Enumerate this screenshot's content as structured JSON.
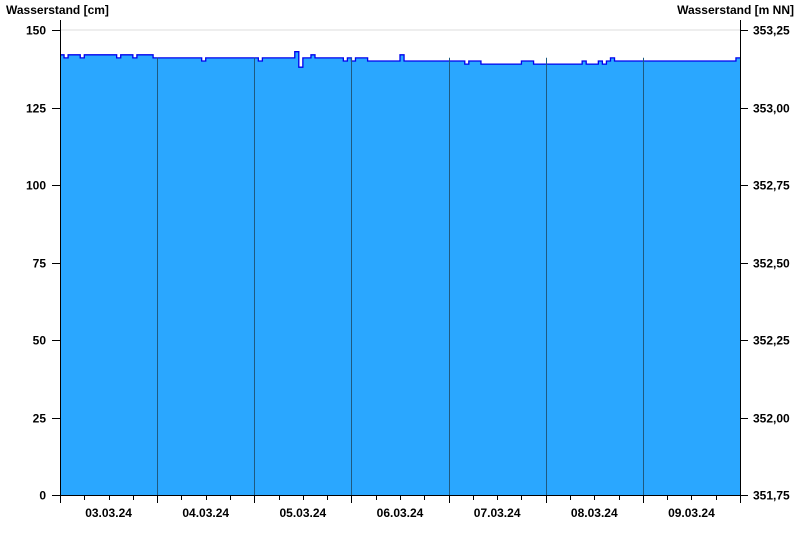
{
  "chart_data": {
    "type": "area",
    "ylabel_left": "Wasserstand [cm]",
    "ylabel_right": "Wasserstand [m NN]",
    "ylim": [
      0,
      150
    ],
    "yticks": [
      0,
      25,
      50,
      75,
      100,
      125,
      150
    ],
    "ylim_right": [
      351.75,
      353.25
    ],
    "yticks_right": [
      "351,75",
      "352,00",
      "352,25",
      "352,50",
      "352,75",
      "353,00",
      "353,25"
    ],
    "xlim": [
      "03.03.24 00:00",
      "10.03.24 00:00"
    ],
    "xticks": [
      "03.03.24",
      "04.03.24",
      "05.03.24",
      "06.03.24",
      "07.03.24",
      "08.03.24",
      "09.03.24"
    ],
    "grid": true,
    "fill_color": "#2aa7ff",
    "line_color": "#0000ee",
    "series": [
      {
        "points": [
          [
            "03.03.24 00:00",
            142
          ],
          [
            "03.03.24 01:00",
            141
          ],
          [
            "03.03.24 02:00",
            142
          ],
          [
            "03.03.24 05:00",
            141
          ],
          [
            "03.03.24 06:00",
            142
          ],
          [
            "03.03.24 14:00",
            141
          ],
          [
            "03.03.24 15:00",
            142
          ],
          [
            "03.03.24 18:00",
            141
          ],
          [
            "03.03.24 19:00",
            142
          ],
          [
            "03.03.24 23:00",
            141
          ],
          [
            "04.03.24 11:00",
            140
          ],
          [
            "04.03.24 12:00",
            141
          ],
          [
            "05.03.24 01:00",
            140
          ],
          [
            "05.03.24 02:00",
            141
          ],
          [
            "05.03.24 10:00",
            143
          ],
          [
            "05.03.24 11:00",
            138
          ],
          [
            "05.03.24 12:00",
            141
          ],
          [
            "05.03.24 14:00",
            142
          ],
          [
            "05.03.24 15:00",
            141
          ],
          [
            "05.03.24 22:00",
            140
          ],
          [
            "05.03.24 23:00",
            141
          ],
          [
            "06.03.24 00:00",
            140
          ],
          [
            "06.03.24 01:00",
            141
          ],
          [
            "06.03.24 04:00",
            140
          ],
          [
            "06.03.24 12:00",
            142
          ],
          [
            "06.03.24 13:00",
            140
          ],
          [
            "07.03.24 04:00",
            139
          ],
          [
            "07.03.24 05:00",
            140
          ],
          [
            "07.03.24 08:00",
            139
          ],
          [
            "07.03.24 18:00",
            140
          ],
          [
            "07.03.24 21:00",
            139
          ],
          [
            "08.03.24 09:00",
            140
          ],
          [
            "08.03.24 10:00",
            139
          ],
          [
            "08.03.24 13:00",
            140
          ],
          [
            "08.03.24 14:00",
            139
          ],
          [
            "08.03.24 15:00",
            140
          ],
          [
            "08.03.24 16:00",
            141
          ],
          [
            "08.03.24 17:00",
            140
          ],
          [
            "09.03.24 23:00",
            141
          ],
          [
            "10.03.24 00:00",
            141
          ]
        ]
      }
    ]
  }
}
